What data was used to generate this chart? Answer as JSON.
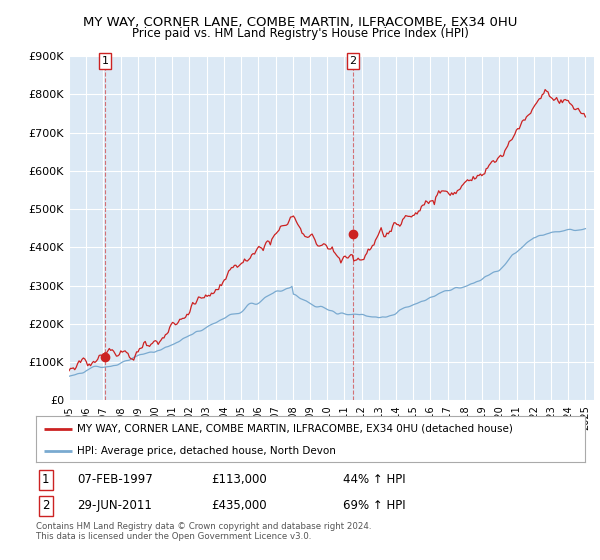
{
  "title": "MY WAY, CORNER LANE, COMBE MARTIN, ILFRACOMBE, EX34 0HU",
  "subtitle": "Price paid vs. HM Land Registry's House Price Index (HPI)",
  "legend_line1": "MY WAY, CORNER LANE, COMBE MARTIN, ILFRACOMBE, EX34 0HU (detached house)",
  "legend_line2": "HPI: Average price, detached house, North Devon",
  "transaction1_date": "07-FEB-1997",
  "transaction1_price": "£113,000",
  "transaction1_hpi": "44% ↑ HPI",
  "transaction2_date": "29-JUN-2011",
  "transaction2_price": "£435,000",
  "transaction2_hpi": "69% ↑ HPI",
  "footnote": "Contains HM Land Registry data © Crown copyright and database right 2024.\nThis data is licensed under the Open Government Licence v3.0.",
  "hpi_color": "#7aaad0",
  "price_color": "#cc2222",
  "background_color": "#dce9f5",
  "ylim": [
    0,
    900000
  ],
  "yticks": [
    0,
    100000,
    200000,
    300000,
    400000,
    500000,
    600000,
    700000,
    800000,
    900000
  ],
  "ytick_labels": [
    "£0",
    "£100K",
    "£200K",
    "£300K",
    "£400K",
    "£500K",
    "£600K",
    "£700K",
    "£800K",
    "£900K"
  ],
  "xmin": 1995.0,
  "xmax": 2025.5,
  "transaction1_x": 1997.1,
  "transaction1_y": 113000,
  "transaction2_x": 2011.5,
  "transaction2_y": 435000
}
